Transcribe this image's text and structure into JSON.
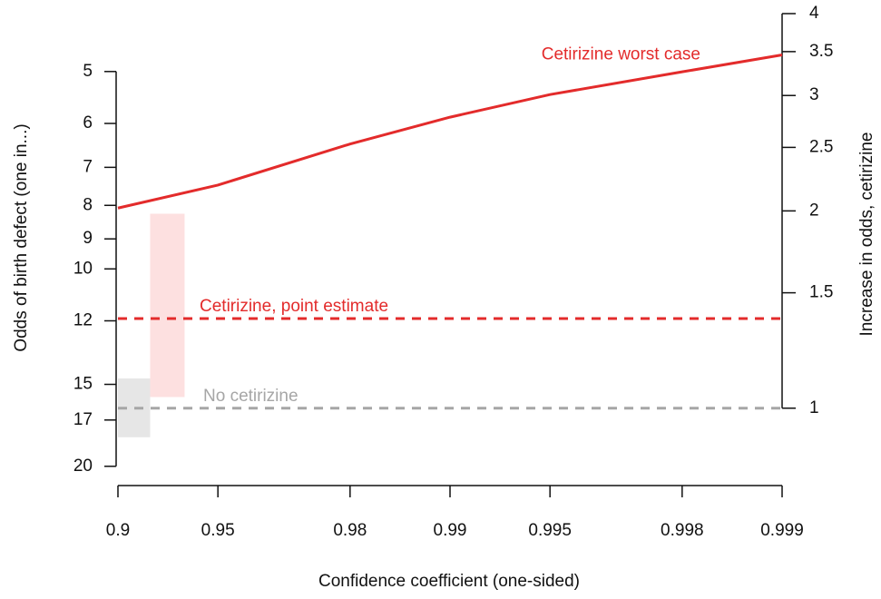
{
  "chart_data": {
    "type": "line",
    "xlabel": "Confidence coefficient (one-sided)",
    "ylabel": "Odds of birth defect (one in...)",
    "y2label": "Increase in odds, cetirizine",
    "xscale": "log-complement",
    "xlim": [
      0.9,
      0.999
    ],
    "xticks": [
      0.9,
      0.95,
      0.98,
      0.99,
      0.995,
      0.998,
      0.999
    ],
    "yscale": "log",
    "ylim": [
      21.4,
      4.08
    ],
    "yticks": [
      5,
      6,
      7,
      8,
      9,
      10,
      12,
      15,
      17,
      20
    ],
    "y2scale": "log",
    "y2lim": [
      0.762,
      4.0
    ],
    "y2ticks": [
      1,
      1.5,
      2,
      2.5,
      3,
      3.5,
      4
    ],
    "series": [
      {
        "name": "Cetirizine worst case",
        "color": "#e32b2b",
        "axis": "y2",
        "dashed": false,
        "x": [
          0.9,
          0.95,
          0.98,
          0.99,
          0.995,
          0.998,
          0.999
        ],
        "values": [
          2.02,
          2.19,
          2.53,
          2.78,
          3.01,
          3.26,
          3.46
        ]
      },
      {
        "name": "Cetirizine, point estimate",
        "color": "#e32b2b",
        "axis": "y2",
        "dashed": true,
        "x": [
          0.9,
          0.999
        ],
        "values": [
          1.37,
          1.37
        ]
      },
      {
        "name": "No cetirizine",
        "color": "#a6a6a6",
        "axis": "y2",
        "dashed": true,
        "x": [
          0.9,
          0.999
        ],
        "values": [
          1,
          1
        ]
      }
    ],
    "bands": [
      {
        "color": "#e6e6e6",
        "x": [
          0.9,
          0.92
        ],
        "values": [
          0.903,
          1.11
        ]
      },
      {
        "color": "#fde0e0",
        "x": [
          0.92,
          0.937
        ],
        "values": [
          1.04,
          1.98
        ]
      }
    ]
  }
}
